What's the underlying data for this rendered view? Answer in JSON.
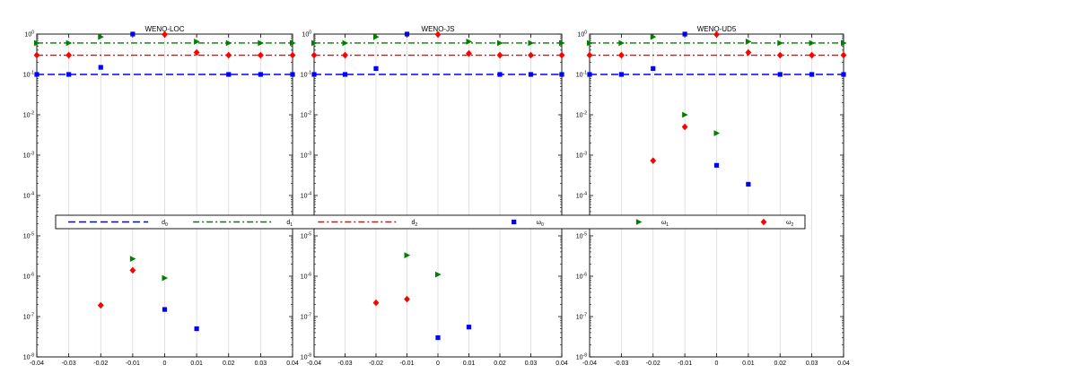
{
  "chart_data": [
    {
      "type": "scatter",
      "title": "WENO-LOC",
      "x_scale": "linear",
      "y_scale": "log",
      "xlim": [
        -0.04,
        0.04
      ],
      "ylim": [
        1e-08,
        1
      ],
      "x_ticks": [
        -0.04,
        -0.03,
        -0.02,
        -0.01,
        0,
        0.01,
        0.02,
        0.03,
        0.04
      ],
      "x_tick_labels": [
        "-0.04",
        "-0.03",
        "-0.02",
        "-0.01",
        "0",
        "0.01",
        "0.02",
        "0.03",
        "0.04"
      ],
      "y_ticks": [
        1e-08,
        1e-07,
        1e-06,
        1e-05,
        0.0001,
        0.001,
        0.01,
        0.1,
        1
      ],
      "y_tick_labels": [
        "10^-8",
        "10^-7",
        "10^-6",
        "10^-5",
        "10^-4",
        "10^-3",
        "10^-2",
        "10^-1",
        "10^0"
      ],
      "grid": "vertical",
      "series": [
        {
          "key": "d0",
          "style": "dashed-line",
          "color": "#0000ff",
          "x": [
            -0.04,
            0.04
          ],
          "y": [
            0.1,
            0.1
          ],
          "markers": {
            "x": [
              -0.04,
              -0.03,
              0.02,
              0.03,
              0.04
            ],
            "y": [
              0.1,
              0.1,
              0.1,
              0.1,
              0.1
            ],
            "shape": "square"
          }
        },
        {
          "key": "d1",
          "style": "dashdot-line",
          "color": "#007f00",
          "x": [
            -0.04,
            0.04
          ],
          "y": [
            0.6,
            0.6
          ],
          "markers": {
            "x": [
              -0.04,
              -0.03,
              0.02,
              0.03,
              0.04
            ],
            "y": [
              0.6,
              0.6,
              0.6,
              0.6,
              0.6
            ],
            "shape": "triangle"
          }
        },
        {
          "key": "d2",
          "style": "dashdot-line",
          "color": "#ff0000",
          "x": [
            -0.04,
            0.04
          ],
          "y": [
            0.3,
            0.3
          ],
          "markers": {
            "x": [
              -0.04,
              -0.03,
              0.02,
              0.03,
              0.04
            ],
            "y": [
              0.3,
              0.3,
              0.3,
              0.3,
              0.3
            ],
            "shape": "diamond"
          }
        },
        {
          "key": "w0",
          "style": "marker",
          "shape": "square",
          "color": "#0000ff",
          "x": [
            -0.02,
            -0.01,
            0,
            0.01
          ],
          "y": [
            0.15,
            1.0,
            1.5e-07,
            5e-08
          ]
        },
        {
          "key": "w1",
          "style": "marker",
          "shape": "triangle",
          "color": "#007f00",
          "x": [
            -0.02,
            -0.01,
            0,
            0.01
          ],
          "y": [
            0.85,
            2.7e-06,
            9e-07,
            0.65
          ]
        },
        {
          "key": "w2",
          "style": "marker",
          "shape": "diamond",
          "color": "#ff0000",
          "x": [
            -0.02,
            -0.01,
            0,
            0.01
          ],
          "y": [
            1.9e-07,
            1.4e-06,
            0.98,
            0.35
          ]
        }
      ]
    },
    {
      "type": "scatter",
      "title": "WENO-JS",
      "x_scale": "linear",
      "y_scale": "log",
      "xlim": [
        -0.04,
        0.04
      ],
      "ylim": [
        1e-08,
        1
      ],
      "x_ticks": [
        -0.04,
        -0.03,
        -0.02,
        -0.01,
        0,
        0.01,
        0.02,
        0.03,
        0.04
      ],
      "x_tick_labels": [
        "-0.04",
        "-0.03",
        "-0.02",
        "-0.01",
        "0",
        "0.01",
        "0.02",
        "0.03",
        "0.04"
      ],
      "y_ticks": [
        1e-08,
        1e-07,
        1e-06,
        1e-05,
        0.0001,
        0.001,
        0.01,
        0.1,
        1
      ],
      "y_tick_labels": [
        "10^-8",
        "10^-7",
        "10^-6",
        "10^-5",
        "10^-4",
        "10^-3",
        "10^-2",
        "10^-1",
        "10^0"
      ],
      "grid": "vertical",
      "series": [
        {
          "key": "d0",
          "style": "dashed-line",
          "color": "#0000ff",
          "x": [
            -0.04,
            0.04
          ],
          "y": [
            0.1,
            0.1
          ],
          "markers": {
            "x": [
              -0.04,
              -0.03,
              0.02,
              0.03,
              0.04
            ],
            "y": [
              0.1,
              0.1,
              0.1,
              0.1,
              0.1
            ],
            "shape": "square"
          }
        },
        {
          "key": "d1",
          "style": "dashdot-line",
          "color": "#007f00",
          "x": [
            -0.04,
            0.04
          ],
          "y": [
            0.6,
            0.6
          ],
          "markers": {
            "x": [
              -0.04,
              -0.03,
              0.02,
              0.03,
              0.04
            ],
            "y": [
              0.6,
              0.6,
              0.6,
              0.6,
              0.6
            ],
            "shape": "triangle"
          }
        },
        {
          "key": "d2",
          "style": "dashdot-line",
          "color": "#ff0000",
          "x": [
            -0.04,
            0.04
          ],
          "y": [
            0.3,
            0.3
          ],
          "markers": {
            "x": [
              -0.04,
              -0.03,
              0.02,
              0.03,
              0.04
            ],
            "y": [
              0.3,
              0.3,
              0.3,
              0.3,
              0.3
            ],
            "shape": "diamond"
          }
        },
        {
          "key": "w0",
          "style": "marker",
          "shape": "square",
          "color": "#0000ff",
          "x": [
            -0.02,
            -0.01,
            0,
            0.01
          ],
          "y": [
            0.14,
            1.0,
            3e-08,
            5.5e-08
          ]
        },
        {
          "key": "w1",
          "style": "marker",
          "shape": "triangle",
          "color": "#007f00",
          "x": [
            -0.02,
            -0.01,
            0,
            0.01
          ],
          "y": [
            0.85,
            3.3e-06,
            1.1e-06,
            0.65
          ]
        },
        {
          "key": "w2",
          "style": "marker",
          "shape": "diamond",
          "color": "#ff0000",
          "x": [
            -0.02,
            -0.01,
            0,
            0.01
          ],
          "y": [
            2.2e-07,
            2.7e-07,
            0.98,
            0.33
          ]
        }
      ]
    },
    {
      "type": "scatter",
      "title": "WENO-UD5",
      "x_scale": "linear",
      "y_scale": "log",
      "xlim": [
        -0.04,
        0.04
      ],
      "ylim": [
        1e-08,
        1
      ],
      "x_ticks": [
        -0.04,
        -0.03,
        -0.02,
        -0.01,
        0,
        0.01,
        0.02,
        0.03,
        0.04
      ],
      "x_tick_labels": [
        "-0.04",
        "-0.03",
        "-0.02",
        "-0.01",
        "0",
        "0.01",
        "0.02",
        "0.03",
        "0.04"
      ],
      "y_ticks": [
        1e-08,
        1e-07,
        1e-06,
        1e-05,
        0.0001,
        0.001,
        0.01,
        0.1,
        1
      ],
      "y_tick_labels": [
        "10^-8",
        "10^-7",
        "10^-6",
        "10^-5",
        "10^-4",
        "10^-3",
        "10^-2",
        "10^-1",
        "10^0"
      ],
      "grid": "vertical",
      "series": [
        {
          "key": "d0",
          "style": "dashed-line",
          "color": "#0000ff",
          "x": [
            -0.04,
            0.04
          ],
          "y": [
            0.1,
            0.1
          ],
          "markers": {
            "x": [
              -0.04,
              -0.03,
              0.02,
              0.03,
              0.04
            ],
            "y": [
              0.1,
              0.1,
              0.1,
              0.1,
              0.1
            ],
            "shape": "square"
          }
        },
        {
          "key": "d1",
          "style": "dashdot-line",
          "color": "#007f00",
          "x": [
            -0.04,
            0.04
          ],
          "y": [
            0.6,
            0.6
          ],
          "markers": {
            "x": [
              -0.04,
              -0.03,
              0.02,
              0.03,
              0.04
            ],
            "y": [
              0.6,
              0.6,
              0.6,
              0.6,
              0.6
            ],
            "shape": "triangle"
          }
        },
        {
          "key": "d2",
          "style": "dashdot-line",
          "color": "#ff0000",
          "x": [
            -0.04,
            0.04
          ],
          "y": [
            0.3,
            0.3
          ],
          "markers": {
            "x": [
              -0.04,
              -0.03,
              0.02,
              0.03,
              0.04
            ],
            "y": [
              0.3,
              0.3,
              0.3,
              0.3,
              0.3
            ],
            "shape": "diamond"
          }
        },
        {
          "key": "w0",
          "style": "marker",
          "shape": "square",
          "color": "#0000ff",
          "x": [
            -0.02,
            -0.01,
            0,
            0.01
          ],
          "y": [
            0.14,
            1.0,
            0.00056,
            0.00019
          ]
        },
        {
          "key": "w1",
          "style": "marker",
          "shape": "triangle",
          "color": "#007f00",
          "x": [
            -0.02,
            -0.01,
            0,
            0.01
          ],
          "y": [
            0.85,
            0.01,
            0.0035,
            0.65
          ]
        },
        {
          "key": "w2",
          "style": "marker",
          "shape": "diamond",
          "color": "#ff0000",
          "x": [
            -0.02,
            -0.01,
            0,
            0.01
          ],
          "y": [
            0.00073,
            0.005,
            0.98,
            0.35
          ]
        }
      ]
    }
  ],
  "legend": {
    "placement": "center (spanning all panels)",
    "entries": [
      {
        "key": "d0",
        "base": "d",
        "sub": "0",
        "color": "#0000ff",
        "style": "dashed-line"
      },
      {
        "key": "d1",
        "base": "d",
        "sub": "1",
        "color": "#007f00",
        "style": "dashdot-line"
      },
      {
        "key": "d2",
        "base": "d",
        "sub": "2",
        "color": "#ff0000",
        "style": "dashdot-line"
      },
      {
        "key": "w0",
        "base": "ω",
        "sub": "0",
        "color": "#0000ff",
        "style": "square-marker"
      },
      {
        "key": "w1",
        "base": "ω",
        "sub": "1",
        "color": "#007f00",
        "style": "triangle-marker"
      },
      {
        "key": "w2",
        "base": "ω",
        "sub": "2",
        "color": "#ff0000",
        "style": "diamond-marker"
      }
    ]
  }
}
